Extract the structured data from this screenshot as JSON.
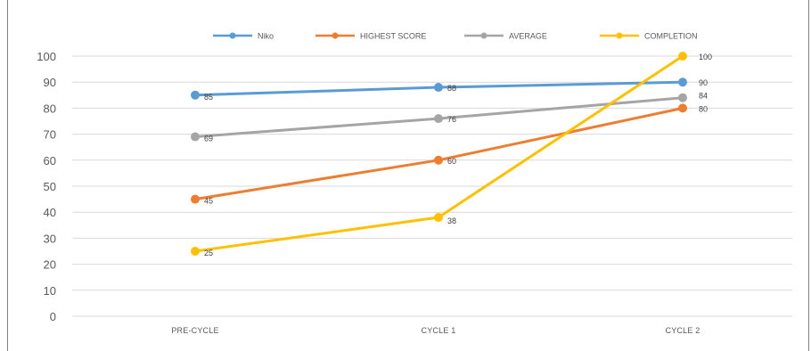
{
  "chart_data": {
    "type": "line",
    "categories": [
      "PRE-CYCLE",
      "CYCLE 1",
      "CYCLE 2"
    ],
    "ylim": [
      0,
      100
    ],
    "yticks": [
      0,
      10,
      20,
      30,
      40,
      50,
      60,
      70,
      80,
      90,
      100
    ],
    "grid": true,
    "legend_position": "top",
    "series": [
      {
        "name": "Niko",
        "values": [
          85,
          88,
          90
        ],
        "labels": [
          "85",
          "88",
          "90"
        ],
        "color": "#5b9bd5"
      },
      {
        "name": "HIGHEST SCORE",
        "values": [
          45,
          60,
          80
        ],
        "labels": [
          "45",
          "60",
          "80"
        ],
        "color": "#ed7d31"
      },
      {
        "name": "AVERAGE",
        "values": [
          69,
          76,
          84
        ],
        "labels": [
          "69",
          "76",
          "84"
        ],
        "color": "#a5a5a5"
      },
      {
        "name": "COMPLETION",
        "values": [
          25,
          38,
          100
        ],
        "labels": [
          "25",
          "38",
          "100"
        ],
        "color": "#ffc000"
      }
    ]
  }
}
